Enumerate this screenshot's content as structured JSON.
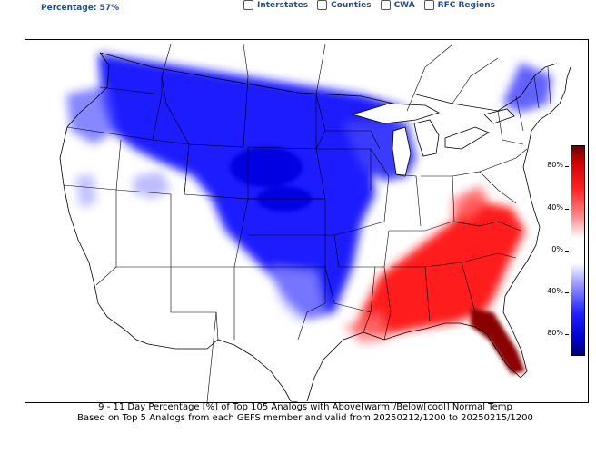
{
  "header": {
    "percentage_text": "Percentage: 57%",
    "toggles": [
      {
        "label": "Interstates"
      },
      {
        "label": "Counties"
      },
      {
        "label": "CWA"
      },
      {
        "label": "RFC Regions"
      }
    ]
  },
  "caption": {
    "line1": "9 - 11 Day  Percentage [%] of Top 105 Analogs with Above[warm]/Below[cool] Normal Temp",
    "line2": "Based on Top 5 Analogs from each GEFS member and valid from 20250212/1200 to 20250215/1200"
  },
  "colorbar": {
    "ticks": [
      "80%",
      "40%",
      "0%",
      "40%",
      "80%"
    ],
    "warm_color": "#ff0000",
    "cool_color": "#0000ff"
  }
}
